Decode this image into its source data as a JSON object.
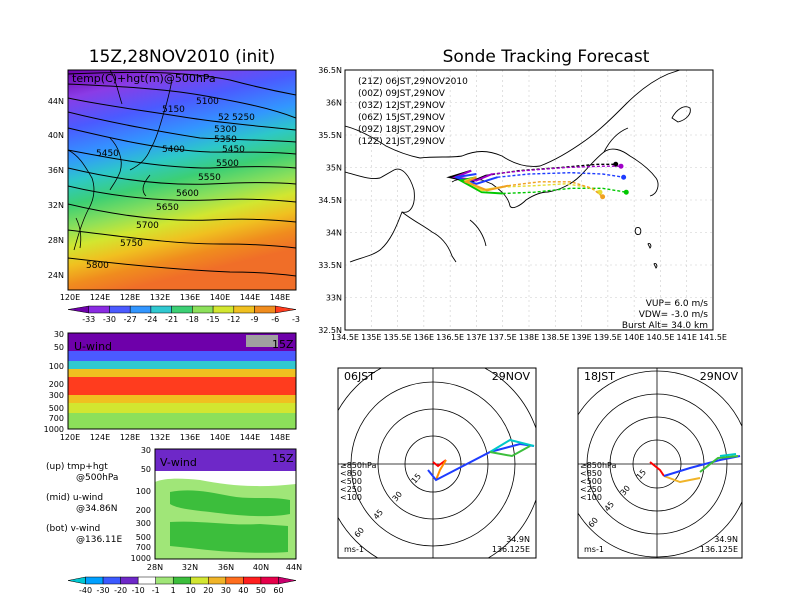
{
  "left_title": "15Z,28NOV2010 (init)",
  "right_title": "Sonde Tracking Forecast",
  "map500": {
    "overlay_label": "temp(C)+hgt(m)@500hPa",
    "lat_ticks": [
      "44N",
      "40N",
      "36N",
      "32N",
      "28N",
      "24N"
    ],
    "lon_ticks": [
      "120E",
      "124E",
      "128E",
      "132E",
      "136E",
      "140E",
      "144E",
      "148E"
    ],
    "contour_labels": [
      "5100",
      "5150",
      "5250",
      "5300",
      "5350",
      "5400",
      "5450",
      "5450",
      "5500",
      "5550",
      "5600",
      "5650",
      "5700",
      "5750",
      "5800",
      "52"
    ],
    "colorbar_ticks": [
      "-33",
      "-30",
      "-27",
      "-24",
      "-21",
      "-18",
      "-15",
      "-12",
      "-9",
      "-6",
      "-3"
    ]
  },
  "uwind": {
    "label": "U-wind",
    "time": "15Z",
    "y_ticks": [
      "30",
      "50",
      "100",
      "200",
      "300",
      "500",
      "700",
      "1000"
    ],
    "x_ticks": [
      "120E",
      "124E",
      "128E",
      "132E",
      "136E",
      "140E",
      "144E",
      "148E"
    ]
  },
  "vwind": {
    "label": "V-wind",
    "time": "15Z",
    "y_ticks": [
      "30",
      "50",
      "100",
      "200",
      "300",
      "500",
      "700",
      "1000"
    ],
    "x_ticks": [
      "28N",
      "32N",
      "36N",
      "40N",
      "44N"
    ],
    "colorbar_ticks": [
      "-40",
      "-30",
      "-20",
      "-10",
      "-1",
      "1",
      "10",
      "20",
      "30",
      "40",
      "50",
      "60"
    ]
  },
  "legend_text": {
    "up_1": "(up) tmp+hgt",
    "up_2": "@500hPa",
    "mid_1": "(mid) u-wind",
    "mid_2": "@34.86N",
    "bot_1": "(bot) v-wind",
    "bot_2": "@136.11E"
  },
  "track": {
    "legend": [
      {
        "label": "(21Z)  06JST,29NOV2010",
        "color": "#000000"
      },
      {
        "label": "(00Z)  09JST,29NOV",
        "color": "#a000c8"
      },
      {
        "label": "(03Z)  12JST,29NOV",
        "color": "#1e3cff"
      },
      {
        "label": "(06Z)  15JST,29NOV",
        "color": "#00c800"
      },
      {
        "label": "(09Z)  18JST,29NOV",
        "color": "#e6dc32"
      },
      {
        "label": "(12Z)  21JST,29NOV",
        "color": "#f0a020"
      }
    ],
    "lat_ticks": [
      "36.5N",
      "36N",
      "35.5N",
      "35N",
      "34.5N",
      "34N",
      "33.5N",
      "33N",
      "32.5N"
    ],
    "lon_ticks": [
      "134.5E",
      "135E",
      "135.5E",
      "136E",
      "136.5E",
      "137E",
      "137.5E",
      "138E",
      "138.5E",
      "139E",
      "139.5E",
      "140E",
      "140.5E",
      "141E",
      "141.5E"
    ],
    "info": {
      "vup": "VUP=  6.0  m/s",
      "vdw": "VDW= -3.0  m/s",
      "burst": "Burst Alt=  34.0  km"
    }
  },
  "hodographs": [
    {
      "time": "06JST",
      "date": "29NOV",
      "lat": "34.9N",
      "lon": "136.125E",
      "unit": "ms-1",
      "rings": [
        "15",
        "30",
        "45",
        "60"
      ],
      "levels": [
        {
          "label": "≥850hPa",
          "color": "#ff0000"
        },
        {
          "label": "<850",
          "color": "#ff8c00"
        },
        {
          "label": "<500",
          "color": "#c8c800"
        },
        {
          "label": "<250",
          "color": "#00c8c8"
        },
        {
          "label": "<100",
          "color": "#1e3cff"
        }
      ]
    },
    {
      "time": "18JST",
      "date": "29NOV",
      "lat": "34.9N",
      "lon": "136.125E",
      "unit": "ms-1",
      "rings": [
        "15",
        "30",
        "45",
        "60"
      ],
      "levels": [
        {
          "label": "≥850hPa",
          "color": "#ff0000"
        },
        {
          "label": "<850",
          "color": "#ff8c00"
        },
        {
          "label": "<500",
          "color": "#c8c800"
        },
        {
          "label": "<250",
          "color": "#00c8c8"
        },
        {
          "label": "<100",
          "color": "#1e3cff"
        }
      ]
    }
  ],
  "chart_data": [
    {
      "type": "heatmap",
      "title": "15Z,28NOV2010 (init)",
      "subtitle": "temp(C)+hgt(m)@500hPa",
      "xlim": [
        120,
        150
      ],
      "ylim": [
        22,
        47
      ],
      "contours_m": [
        5100,
        5150,
        5250,
        5300,
        5350,
        5400,
        5450,
        5500,
        5550,
        5600,
        5650,
        5700,
        5750,
        5800
      ]
    },
    {
      "type": "line",
      "title": "Sonde Tracking Forecast",
      "xlim": [
        134.5,
        141.5
      ],
      "ylim": [
        32.5,
        36.5
      ],
      "series": [
        {
          "name": "(21Z)  06JST,29NOV2010",
          "color": "#000000",
          "x": [
            136.9,
            136.5,
            136.9,
            137.2,
            137.8,
            138.6,
            139.3,
            139.65
          ],
          "y": [
            34.95,
            34.85,
            34.78,
            34.88,
            34.95,
            35.0,
            35.05,
            35.05
          ]
        },
        {
          "name": "(00Z)  09JST,29NOV",
          "color": "#a000c8",
          "x": [
            136.9,
            136.6,
            137.0,
            137.3,
            137.9,
            138.7,
            139.4,
            139.75
          ],
          "y": [
            34.95,
            34.85,
            34.8,
            34.9,
            34.95,
            35.0,
            35.02,
            35.02
          ]
        },
        {
          "name": "(03Z)  12JST,29NOV",
          "color": "#1e3cff",
          "x": [
            137.0,
            136.6,
            137.0,
            137.4,
            138.0,
            138.8,
            139.4,
            139.8
          ],
          "y": [
            34.9,
            34.85,
            34.75,
            34.85,
            34.9,
            34.92,
            34.9,
            34.85
          ]
        },
        {
          "name": "(06Z)  15JST,29NOV",
          "color": "#00c800",
          "x": [
            137.0,
            136.7,
            137.1,
            137.5,
            138.1,
            138.8,
            139.4,
            139.85
          ],
          "y": [
            34.85,
            34.8,
            34.62,
            34.6,
            34.62,
            34.68,
            34.68,
            34.62
          ]
        },
        {
          "name": "(09Z)  18JST,29NOV",
          "color": "#e6dc32",
          "x": [
            137.0,
            136.8,
            137.1,
            137.5,
            138.1,
            138.7,
            139.1,
            139.35
          ],
          "y": [
            34.85,
            34.8,
            34.65,
            34.7,
            34.72,
            34.75,
            34.7,
            34.62
          ]
        },
        {
          "name": "(12Z)  21JST,29NOV",
          "color": "#f0a020",
          "x": [
            137.0,
            136.8,
            137.2,
            137.6,
            138.2,
            138.8,
            139.2,
            139.4
          ],
          "y": [
            34.85,
            34.78,
            34.65,
            34.72,
            34.78,
            34.78,
            34.68,
            34.55
          ]
        }
      ]
    }
  ],
  "colors": {
    "shade": [
      "#6e00aa",
      "#8a2be2",
      "#4b5aff",
      "#3296ff",
      "#30c8d0",
      "#3ccf74",
      "#8ce05a",
      "#d2e630",
      "#f0c020",
      "#f08c1e",
      "#ff3c1e"
    ],
    "vwind": [
      "#00c8d2",
      "#00a0ff",
      "#3c5aff",
      "#6e28c8",
      "#ffffff",
      "#a0e678",
      "#3cbe3c",
      "#d2e632",
      "#f0b428",
      "#ff6e1e",
      "#ff1e1e",
      "#e6004a"
    ]
  }
}
